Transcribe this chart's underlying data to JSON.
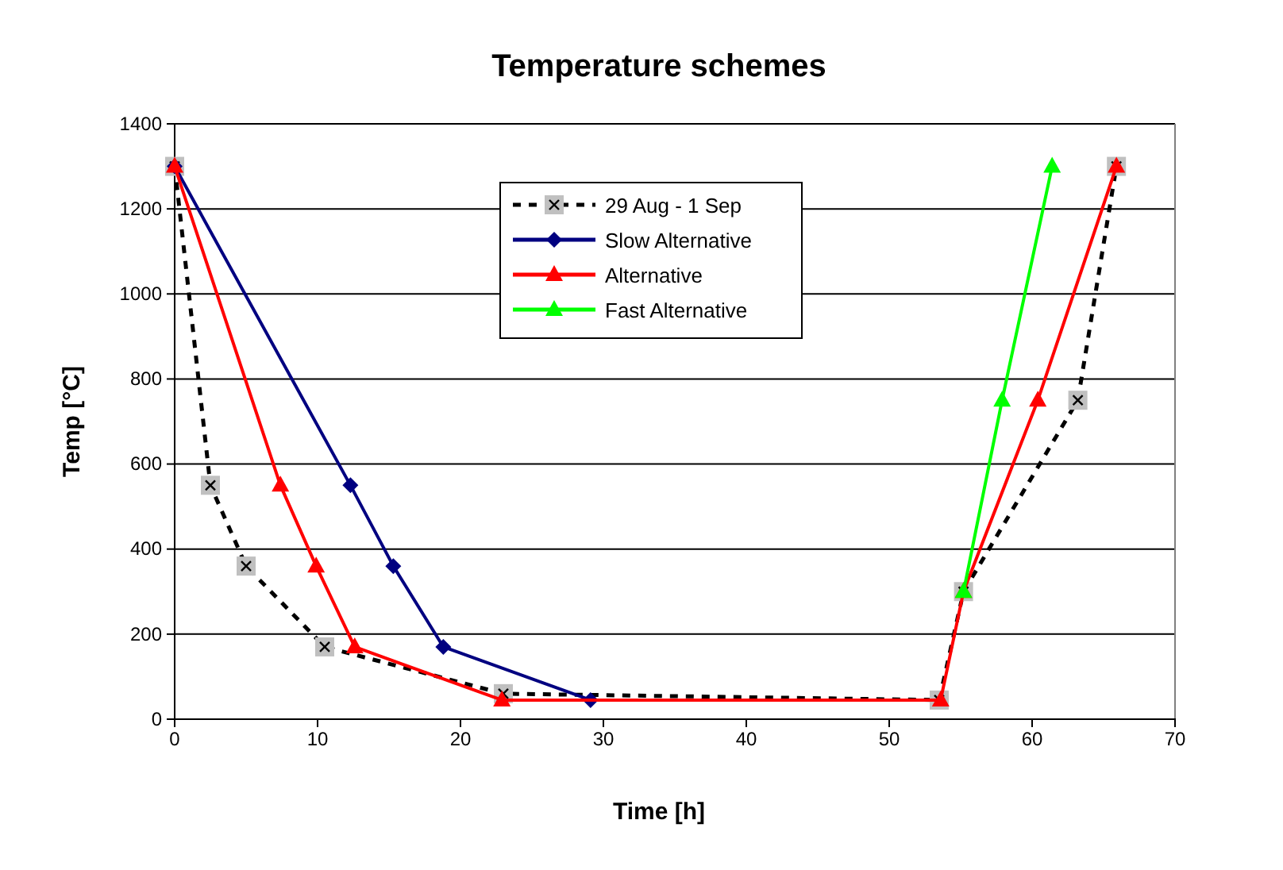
{
  "chart_data": {
    "type": "line",
    "title": "Temperature schemes",
    "xlabel": "Time [h]",
    "ylabel": "Temp [°C]",
    "xlim": [
      0,
      70
    ],
    "xticks": [
      0,
      10,
      20,
      30,
      40,
      50,
      60,
      70
    ],
    "ylim": [
      0,
      1400
    ],
    "yticks": [
      0,
      200,
      400,
      600,
      800,
      1000,
      1200,
      1400
    ],
    "grid": "y",
    "legend": "top",
    "line_style": "solid",
    "series": [
      {
        "name": "29 Aug - 1 Sep",
        "color": "#000000",
        "marker": "cross",
        "line_style": "dashed",
        "x": [
          0,
          2.5,
          5,
          10.5,
          23,
          53.5,
          55.2,
          63.2,
          65.9
        ],
        "values": [
          1300,
          550,
          360,
          170,
          60,
          45,
          300,
          750,
          1300
        ]
      },
      {
        "name": "Slow Alternative",
        "color": "#000080",
        "marker": "diamond",
        "x": [
          0,
          12.3,
          15.3,
          18.8,
          29.1
        ],
        "values": [
          1300,
          550,
          360,
          170,
          45
        ]
      },
      {
        "name": "Alternative",
        "color": "#ff0000",
        "marker": "triangle",
        "x": [
          0,
          7.4,
          9.9,
          12.6,
          22.9,
          53.6,
          55.2,
          60.4,
          65.9
        ],
        "values": [
          1300,
          550,
          360,
          170,
          45,
          45,
          300,
          750,
          1300
        ]
      },
      {
        "name": "Fast Alternative",
        "color": "#00ff00",
        "marker": "triangle",
        "x": [
          55.2,
          57.9,
          61.4
        ],
        "values": [
          300,
          750,
          1300
        ]
      }
    ]
  }
}
